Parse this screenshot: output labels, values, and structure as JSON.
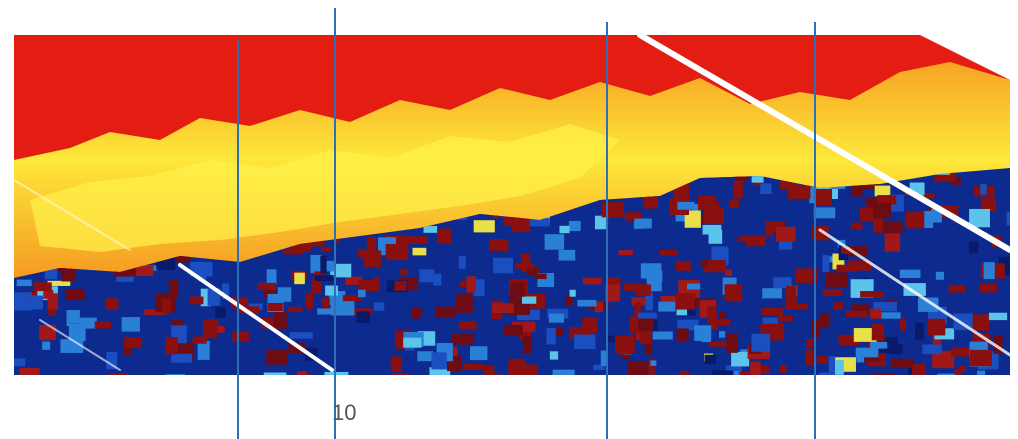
{
  "image": {
    "label": "10"
  }
}
